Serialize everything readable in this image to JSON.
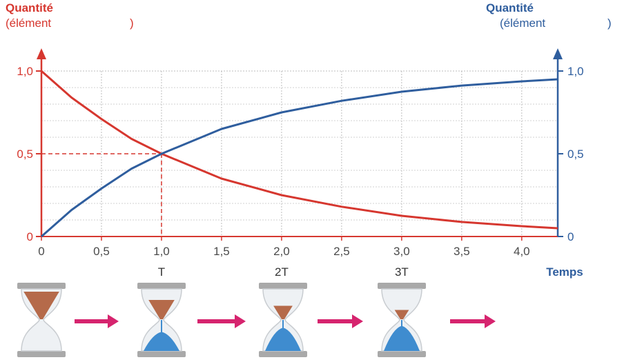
{
  "chart_data": {
    "type": "line",
    "left_axis": {
      "title": "Quantité",
      "subtitle_open": "(élément",
      "subtitle_close": ")",
      "color": "#d6372f",
      "ticks": [
        "0",
        "0,5",
        "1,0"
      ],
      "ylim": [
        0,
        1
      ]
    },
    "right_axis": {
      "title": "Quantité",
      "subtitle_open": "(élément",
      "subtitle_close": ")",
      "color": "#2f5e9e",
      "ticks": [
        "0",
        "0,5",
        "1,0"
      ],
      "ylim": [
        0,
        1
      ]
    },
    "x_axis": {
      "label": "Temps",
      "ticks": [
        "0",
        "0,5",
        "1,0",
        "1,5",
        "2,0",
        "2,5",
        "3,0",
        "3,5",
        "4,0"
      ],
      "xlim": [
        0,
        4.3
      ]
    },
    "period_labels": [
      "T",
      "2T",
      "3T"
    ],
    "grid": true,
    "series": [
      {
        "color": "#d6372f",
        "x": [
          0,
          0.25,
          0.5,
          0.75,
          1.0,
          1.5,
          2.0,
          2.5,
          3.0,
          3.5,
          4.0,
          4.3
        ],
        "y": [
          1.0,
          0.84,
          0.71,
          0.59,
          0.5,
          0.35,
          0.25,
          0.18,
          0.125,
          0.088,
          0.0625,
          0.05
        ]
      },
      {
        "color": "#2f5e9e",
        "x": [
          0,
          0.25,
          0.5,
          0.75,
          1.0,
          1.5,
          2.0,
          2.5,
          3.0,
          3.5,
          4.0,
          4.3
        ],
        "y": [
          0.0,
          0.16,
          0.29,
          0.41,
          0.5,
          0.65,
          0.75,
          0.82,
          0.875,
          0.912,
          0.9375,
          0.95
        ]
      }
    ],
    "annotations": [
      {
        "x": 1.0,
        "y": 0.5,
        "style": "dashed"
      }
    ]
  },
  "hourglasses": [
    {
      "top": 1.0,
      "bottom": 0.0
    },
    {
      "top": 0.5,
      "bottom": 0.5
    },
    {
      "top": 0.25,
      "bottom": 0.75
    },
    {
      "top": 0.125,
      "bottom": 0.875
    }
  ]
}
